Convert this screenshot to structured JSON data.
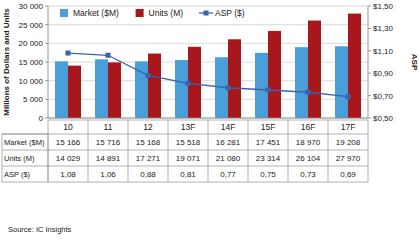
{
  "chart_data": {
    "type": "bar",
    "categories": [
      "10",
      "11",
      "12",
      "13F",
      "14F",
      "15F",
      "16F",
      "17F"
    ],
    "series": [
      {
        "name": "Market ($M)",
        "type": "bar",
        "color": "#4a9fd9",
        "values": [
          15166,
          15716,
          15168,
          15518,
          16281,
          17451,
          18970,
          19208
        ],
        "value_labels": [
          "15 166",
          "15 716",
          "15 168",
          "15 518",
          "16 281",
          "17 451",
          "18 970",
          "19 208"
        ]
      },
      {
        "name": "Units (M)",
        "type": "bar",
        "color": "#a8171c",
        "values": [
          14029,
          14891,
          17271,
          19071,
          21080,
          23314,
          26104,
          27970
        ],
        "value_labels": [
          "14 029",
          "14 891",
          "17 271",
          "19 071",
          "21 080",
          "23 314",
          "26 104",
          "27 970"
        ]
      },
      {
        "name": "ASP ($)",
        "type": "line",
        "axis": "y2",
        "color": "#3b62ae",
        "marker": "square",
        "line_style": "solid",
        "values": [
          1.08,
          1.06,
          0.88,
          0.81,
          0.77,
          0.75,
          0.73,
          0.69
        ],
        "value_labels": [
          "1,08",
          "1,06",
          "0,88",
          "0,81",
          "0,77",
          "0,75",
          "0,73",
          "0,69"
        ]
      }
    ],
    "y_label": "Millions of Dollars and Units",
    "y2_label": "ASP",
    "ylim": [
      0,
      30000
    ],
    "yticks": [
      0,
      {
        "value": 5000,
        "label": "5 000"
      },
      {
        "value": 10000,
        "label": "10 000"
      },
      {
        "value": 15000,
        "label": "15 000"
      },
      {
        "value": 20000,
        "label": "20 000"
      },
      {
        "value": 25000,
        "label": "25 000"
      },
      {
        "value": 30000,
        "label": "30 000"
      }
    ],
    "y2lim": [
      0.5,
      1.5
    ],
    "y2ticks": [
      {
        "value": 0.5,
        "label": "$0,50"
      },
      {
        "value": 0.7,
        "label": "$0,70"
      },
      {
        "value": 0.9,
        "label": "$0,90"
      },
      {
        "value": 1.1,
        "label": "$1,10"
      },
      {
        "value": 1.3,
        "label": "$1,30"
      },
      {
        "value": 1.5,
        "label": "$1,50"
      }
    ],
    "grid": true,
    "legend": "top-left",
    "source": "Source: IC Insights"
  }
}
